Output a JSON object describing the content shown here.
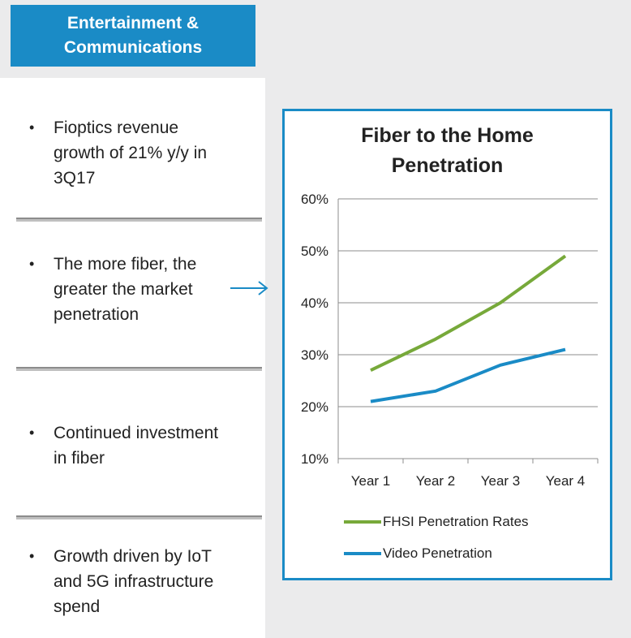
{
  "header": {
    "title": "Entertainment &\nCommunications"
  },
  "bullets": [
    {
      "text": "Fioptics revenue\ngrowth of 21% y/y in\n3Q17"
    },
    {
      "text": "The more fiber, the\ngreater the market\npenetration"
    },
    {
      "text": "Continued investment\nin fiber"
    },
    {
      "text": "Growth driven by IoT\nand 5G infrastructure\nspend"
    }
  ],
  "bullet_symbol": "•",
  "chart_data": {
    "type": "line",
    "title": "Fiber to the Home\nPenetration",
    "categories": [
      "Year 1",
      "Year 2",
      "Year 3",
      "Year 4"
    ],
    "ylim": [
      10,
      60
    ],
    "yticks": [
      "10%",
      "20%",
      "30%",
      "40%",
      "50%",
      "60%"
    ],
    "grid": true,
    "legend_position": "bottom",
    "series": [
      {
        "name": "FHSI Penetration Rates",
        "values": [
          27,
          33,
          40,
          49
        ],
        "color": "#77a93a"
      },
      {
        "name": "Video Penetration",
        "values": [
          21,
          23,
          28,
          31
        ],
        "color": "#1a8bc6"
      }
    ]
  }
}
